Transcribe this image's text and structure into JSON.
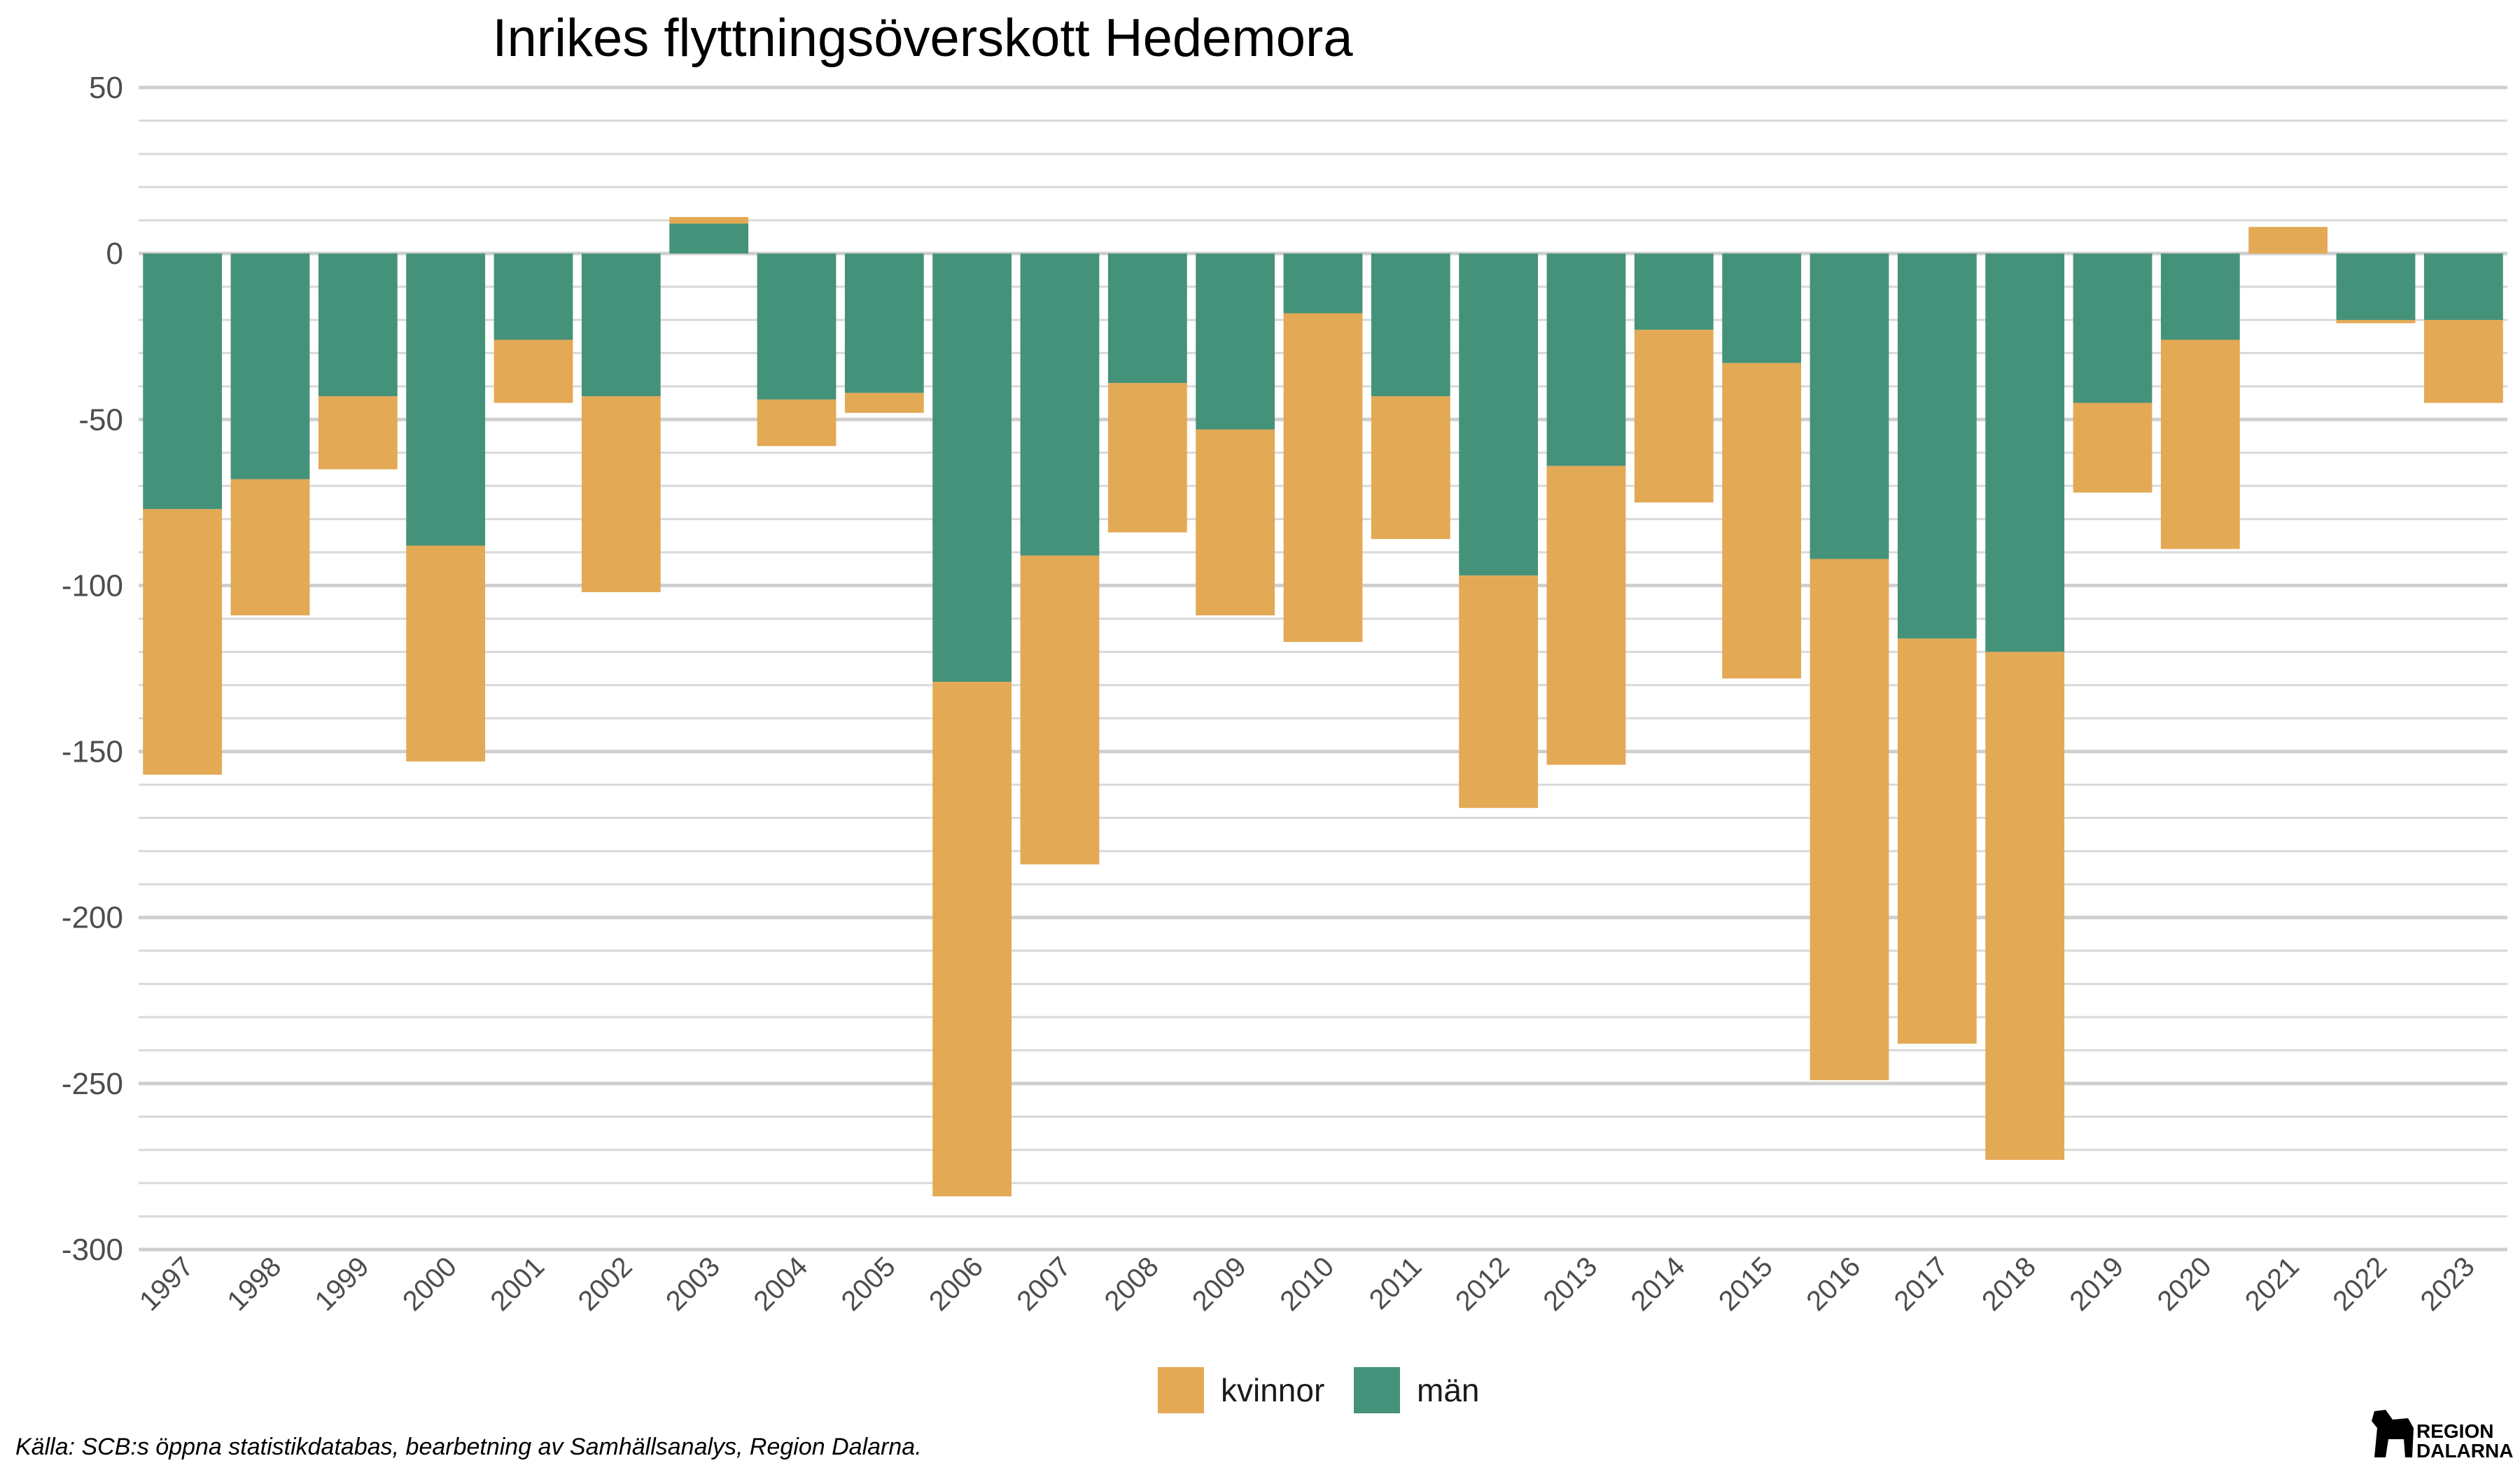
{
  "chart_data": {
    "type": "bar",
    "stacked": true,
    "title": "Inrikes flyttningsöverskott Hedemora",
    "xlabel": "",
    "ylabel": "",
    "ylim": [
      -300,
      50
    ],
    "y_ticks": [
      50,
      0,
      -50,
      -100,
      -150,
      -200,
      -250,
      -300
    ],
    "grid": true,
    "legend_position": "bottom",
    "categories": [
      "1997",
      "1998",
      "1999",
      "2000",
      "2001",
      "2002",
      "2003",
      "2004",
      "2005",
      "2006",
      "2007",
      "2008",
      "2009",
      "2010",
      "2011",
      "2012",
      "2013",
      "2014",
      "2015",
      "2016",
      "2017",
      "2018",
      "2019",
      "2020",
      "2021",
      "2022",
      "2023"
    ],
    "series": [
      {
        "name": "kvinnor",
        "color": "#E3A955",
        "values": [
          -80,
          -41,
          -22,
          -65,
          -19,
          -59,
          2,
          -14,
          -6,
          -155,
          -93,
          -45,
          -56,
          -99,
          -43,
          -70,
          -90,
          -52,
          -95,
          -157,
          -122,
          -153,
          -27,
          -63,
          8,
          -1,
          -25
        ]
      },
      {
        "name": "män",
        "color": "#45927A",
        "values": [
          -77,
          -68,
          -43,
          -88,
          -26,
          -43,
          9,
          -44,
          -42,
          -129,
          -91,
          -39,
          -53,
          -18,
          -43,
          -97,
          -64,
          -23,
          -33,
          -92,
          -116,
          -120,
          -45,
          -26,
          0,
          -20,
          -20
        ]
      }
    ]
  },
  "caption": "Källa: SCB:s öppna statistikdatabas, bearbetning av Samhällsanalys, Region Dalarna.",
  "logo": {
    "line1": "REGION",
    "line2": "DALARNA"
  }
}
